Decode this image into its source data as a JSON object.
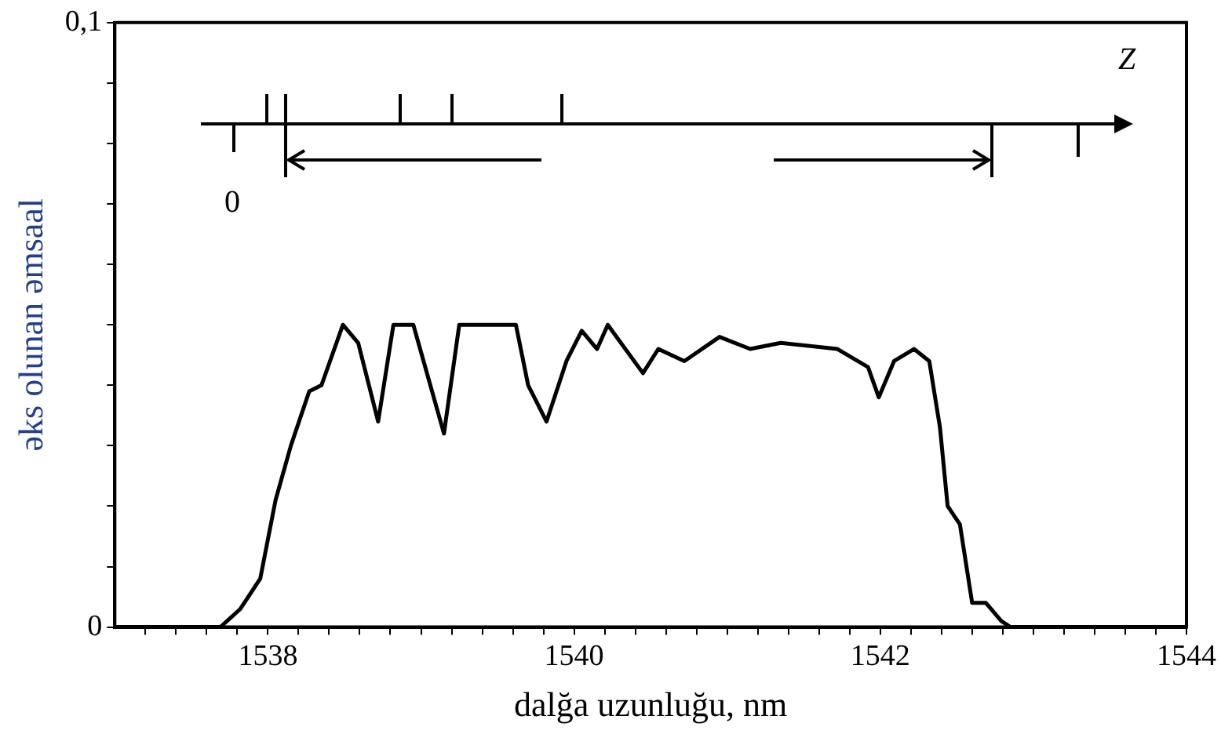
{
  "chart_data": {
    "type": "line",
    "xlabel": "dalğa uzunluğu, nm",
    "ylabel": "əks olunan əmsaal",
    "annotations": [
      "Z",
      "0"
    ],
    "xlim": [
      1537,
      1544
    ],
    "xticks": [
      {
        "value": 1537.2,
        "label": null
      },
      {
        "value": 1537.4,
        "label": null
      },
      {
        "value": 1537.6,
        "label": null
      },
      {
        "value": 1537.8,
        "label": null
      },
      1538,
      {
        "value": 1538.2,
        "label": null
      },
      {
        "value": 1538.4,
        "label": null
      },
      {
        "value": 1538.6,
        "label": null
      },
      {
        "value": 1538.8,
        "label": null
      },
      {
        "value": 1539,
        "label": null
      },
      {
        "value": 1539.2,
        "label": null
      },
      {
        "value": 1539.4,
        "label": null
      },
      {
        "value": 1539.6,
        "label": null
      },
      {
        "value": 1539.8,
        "label": null
      },
      1540,
      {
        "value": 1540.2,
        "label": null
      },
      {
        "value": 1540.4,
        "label": null
      },
      {
        "value": 1540.6,
        "label": null
      },
      {
        "value": 1540.8,
        "label": null
      },
      {
        "value": 1541,
        "label": null
      },
      {
        "value": 1541.2,
        "label": null
      },
      {
        "value": 1541.4,
        "label": null
      },
      {
        "value": 1541.6,
        "label": null
      },
      {
        "value": 1541.8,
        "label": null
      },
      1542,
      {
        "value": 1542.2,
        "label": null
      },
      {
        "value": 1542.4,
        "label": null
      },
      {
        "value": 1542.6,
        "label": null
      },
      {
        "value": 1542.8,
        "label": null
      },
      {
        "value": 1543,
        "label": null
      },
      {
        "value": 1543.2,
        "label": null
      },
      {
        "value": 1543.4,
        "label": null
      },
      {
        "value": 1543.6,
        "label": null
      },
      {
        "value": 1543.8,
        "label": null
      },
      1544
    ],
    "ylim": [
      0,
      0.1
    ],
    "yticks": [
      0,
      {
        "value": 0.01,
        "label": null
      },
      {
        "value": 0.02,
        "label": null
      },
      {
        "value": 0.03,
        "label": null
      },
      {
        "value": 0.04,
        "label": null
      },
      {
        "value": 0.05,
        "label": null
      },
      {
        "value": 0.06,
        "label": null
      },
      {
        "value": 0.07,
        "label": null
      },
      {
        "value": 0.08,
        "label": null
      },
      {
        "value": 0.09,
        "label": null
      },
      {
        "value": 0.1,
        "label": "0,1"
      }
    ],
    "marker": "none",
    "line_style": "solid",
    "series": [
      {
        "color": "#000000",
        "x": [
          1537,
          1537.69,
          1537.82,
          1537.95,
          1538.05,
          1538.15,
          1538.27,
          1538.35,
          1538.49,
          1538.59,
          1538.72,
          1538.82,
          1538.95,
          1539.15,
          1539.25,
          1539.62,
          1539.7,
          1539.82,
          1539.95,
          1540.05,
          1540.15,
          1540.22,
          1540.45,
          1540.55,
          1540.72,
          1540.95,
          1541.15,
          1541.35,
          1541.72,
          1541.92,
          1541.99,
          1542.09,
          1542.22,
          1542.32,
          1542.39,
          1542.44,
          1542.52,
          1542.6,
          1542.69,
          1542.79,
          1542.85,
          1544
        ],
        "values": [
          0,
          0,
          0.003,
          0.008,
          0.021,
          0.03,
          0.039,
          0.04,
          0.05,
          0.047,
          0.034,
          0.05,
          0.05,
          0.032,
          0.05,
          0.05,
          0.04,
          0.034,
          0.044,
          0.049,
          0.046,
          0.05,
          0.042,
          0.046,
          0.044,
          0.048,
          0.046,
          0.047,
          0.046,
          0.043,
          0.038,
          0.044,
          0.046,
          0.044,
          0.033,
          0.02,
          0.017,
          0.004,
          0.004,
          0.001,
          0,
          0
        ]
      }
    ]
  }
}
